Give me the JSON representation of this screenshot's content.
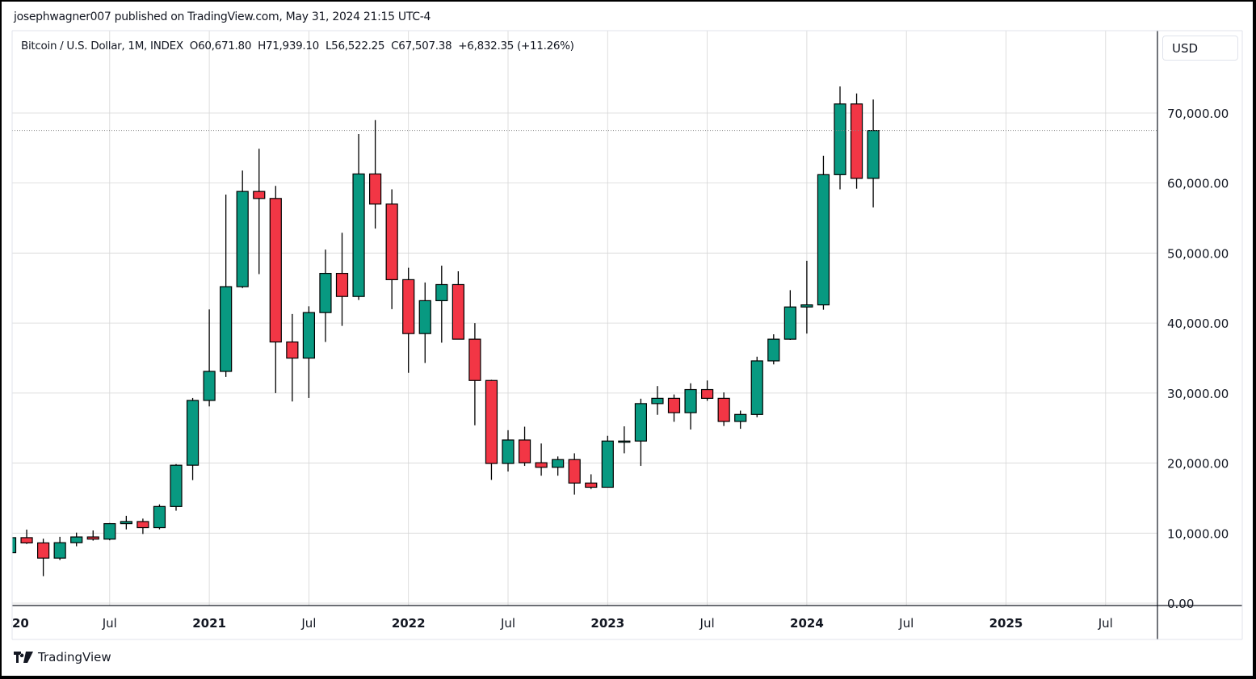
{
  "publisher": "josephwagner007 published on TradingView.com, May 31, 2024 21:15 UTC-4",
  "legend": {
    "symbol": "Bitcoin / U.S. Dollar, 1M, INDEX",
    "open": "O60,671.80",
    "high": "H71,939.10",
    "low": "L56,522.25",
    "close": "C67,507.38",
    "change": "+6,832.35 (+11.26%)"
  },
  "currency_button": "USD",
  "logo_text": "TradingView",
  "colors": {
    "up": "#089981",
    "down": "#F23645",
    "grid": "#d6d6d6"
  },
  "price_labels": [
    "0.00",
    "10,000.00",
    "20,000.00",
    "30,000.00",
    "40,000.00",
    "50,000.00",
    "60,000.00",
    "70,000.00"
  ],
  "time_labels": [
    {
      "text": "20",
      "month": 0,
      "bold": true
    },
    {
      "text": "Jul",
      "month": 6,
      "bold": false
    },
    {
      "text": "2021",
      "month": 12,
      "bold": true
    },
    {
      "text": "Jul",
      "month": 18,
      "bold": false
    },
    {
      "text": "2022",
      "month": 24,
      "bold": true
    },
    {
      "text": "Jul",
      "month": 30,
      "bold": false
    },
    {
      "text": "2023",
      "month": 36,
      "bold": true
    },
    {
      "text": "Jul",
      "month": 42,
      "bold": false
    },
    {
      "text": "2024",
      "month": 48,
      "bold": true
    },
    {
      "text": "Jul",
      "month": 54,
      "bold": false
    },
    {
      "text": "2025",
      "month": 60,
      "bold": true
    },
    {
      "text": "Jul",
      "month": 66,
      "bold": false
    }
  ],
  "chart_data": {
    "type": "candlestick",
    "interval": "1M",
    "start": "2020-01",
    "ylim": [
      0,
      81000
    ],
    "last_price": 67507.38,
    "grid": true,
    "ohlc": [
      [
        7200,
        9570,
        6850,
        9350
      ],
      [
        9350,
        10500,
        8450,
        8600
      ],
      [
        8600,
        9200,
        3850,
        6430
      ],
      [
        6430,
        9470,
        6150,
        8630
      ],
      [
        8630,
        10070,
        8120,
        9450
      ],
      [
        9450,
        10380,
        8930,
        9140
      ],
      [
        9140,
        11440,
        8970,
        11350
      ],
      [
        11350,
        12470,
        10530,
        11650
      ],
      [
        11650,
        12070,
        9880,
        10780
      ],
      [
        10780,
        14100,
        10540,
        13800
      ],
      [
        13800,
        19860,
        13200,
        19700
      ],
      [
        19700,
        29300,
        17570,
        28950
      ],
      [
        28950,
        41950,
        28100,
        33100
      ],
      [
        33100,
        58350,
        32300,
        45200
      ],
      [
        45200,
        61780,
        45000,
        58800
      ],
      [
        58800,
        64900,
        47000,
        57800
      ],
      [
        57800,
        59600,
        30000,
        37300
      ],
      [
        37300,
        41300,
        28800,
        35000
      ],
      [
        35000,
        42400,
        29300,
        41500
      ],
      [
        41500,
        50500,
        37300,
        47100
      ],
      [
        47100,
        52900,
        39600,
        43800
      ],
      [
        43800,
        67000,
        43300,
        61300
      ],
      [
        61300,
        69000,
        53500,
        57000
      ],
      [
        57000,
        59100,
        42000,
        46200
      ],
      [
        46200,
        47900,
        32900,
        38500
      ],
      [
        38500,
        45800,
        34300,
        43200
      ],
      [
        43200,
        48200,
        37200,
        45500
      ],
      [
        45500,
        47400,
        37700,
        37700
      ],
      [
        37700,
        40000,
        25400,
        31800
      ],
      [
        31800,
        31900,
        17600,
        19950
      ],
      [
        19950,
        24700,
        18800,
        23300
      ],
      [
        23300,
        25200,
        19600,
        20050
      ],
      [
        20050,
        22800,
        18200,
        19400
      ],
      [
        19400,
        20950,
        18200,
        20500
      ],
      [
        20500,
        21400,
        15500,
        17150
      ],
      [
        17150,
        18400,
        16300,
        16550
      ],
      [
        16550,
        23900,
        16500,
        23150
      ],
      [
        23150,
        25250,
        21400,
        23150
      ],
      [
        23150,
        29200,
        19600,
        28500
      ],
      [
        28500,
        31000,
        26900,
        29250
      ],
      [
        29250,
        29800,
        25900,
        27200
      ],
      [
        27200,
        31400,
        24800,
        30500
      ],
      [
        30500,
        31800,
        28900,
        29250
      ],
      [
        29250,
        30100,
        25300,
        25950
      ],
      [
        25950,
        27500,
        24900,
        26950
      ],
      [
        26950,
        35200,
        26550,
        34600
      ],
      [
        34600,
        38400,
        34100,
        37700
      ],
      [
        37700,
        44700,
        37600,
        42300
      ],
      [
        42300,
        48900,
        38500,
        42600
      ],
      [
        42600,
        63900,
        41900,
        61200
      ],
      [
        61200,
        73800,
        59100,
        71300
      ],
      [
        71300,
        72800,
        59200,
        60670
      ],
      [
        60671.8,
        71939.1,
        56522.25,
        67507.38
      ]
    ]
  }
}
